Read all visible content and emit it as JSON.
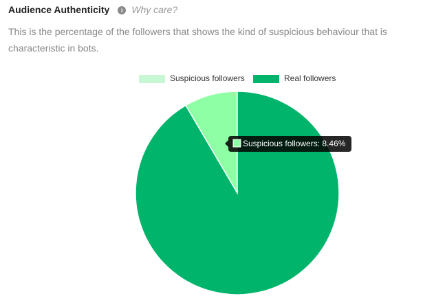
{
  "header": {
    "title": "Audience Authenticity",
    "help": "Why care?",
    "description": "This is the percentage of the followers that shows the kind of suspicious behaviour that is characteristic in bots."
  },
  "chart_data": {
    "type": "pie",
    "categories": [
      "Suspicious followers",
      "Real followers"
    ],
    "values": [
      8.46,
      91.54
    ],
    "colors": [
      "#8effa5",
      "#00b46b"
    ],
    "legend_colors": [
      "#c8f7d4",
      "#00b46b"
    ],
    "tooltip": "Suspicious followers: 8.46%"
  }
}
